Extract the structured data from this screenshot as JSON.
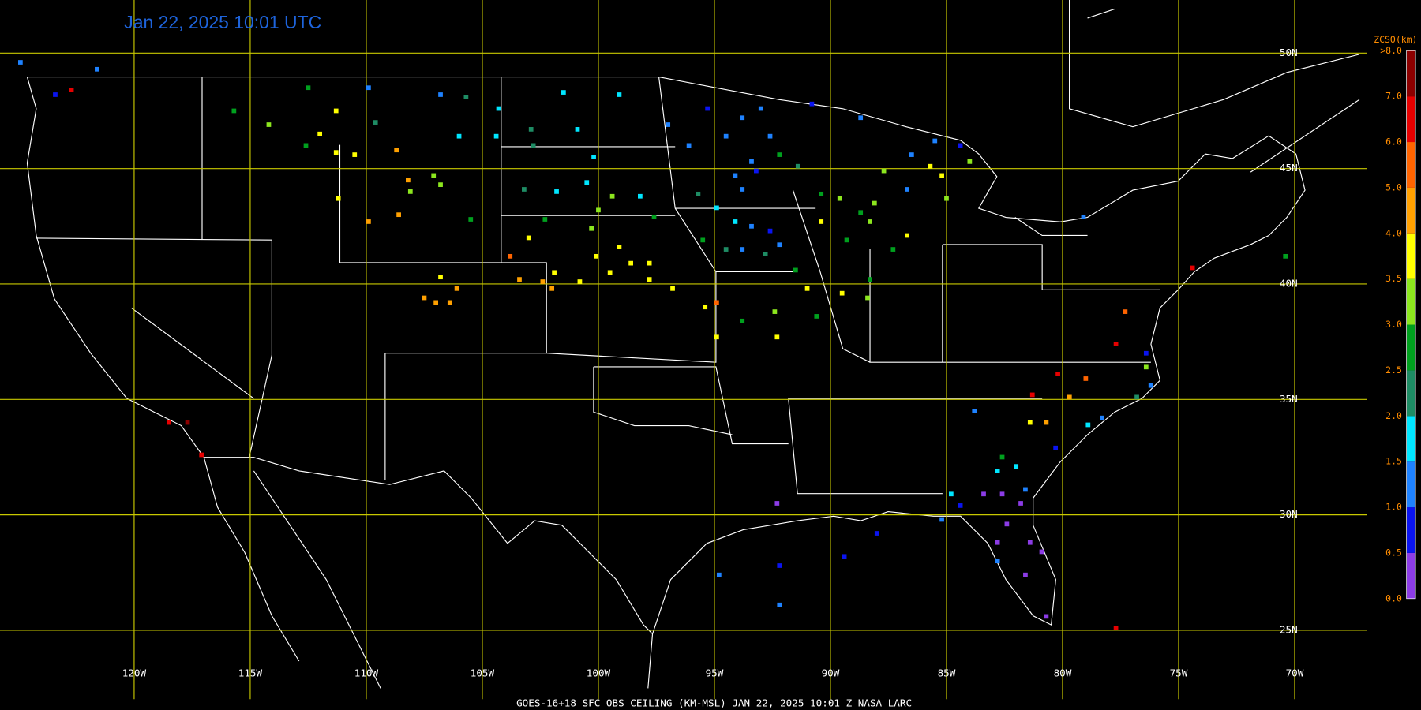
{
  "title": "Jan 22, 2025 10:01 UTC",
  "footer": "GOES-16+18  SFC OBS CEILING (KM-MSL)   JAN 22, 2025 10:01 Z   NASA LARC",
  "map": {
    "xlim": [
      -125.78,
      -66.9
    ],
    "ylim": [
      21.9,
      52.3
    ],
    "grid_color": "#c8c800",
    "xticks": [
      {
        "value": -120,
        "label": "120W"
      },
      {
        "value": -115,
        "label": "115W"
      },
      {
        "value": -110,
        "label": "110W"
      },
      {
        "value": -105,
        "label": "105W"
      },
      {
        "value": -100,
        "label": "100W"
      },
      {
        "value": -95,
        "label": "95W"
      },
      {
        "value": -90,
        "label": "90W"
      },
      {
        "value": -85,
        "label": "85W"
      },
      {
        "value": -80,
        "label": "80W"
      },
      {
        "value": -75,
        "label": "75W"
      },
      {
        "value": -70,
        "label": "70W"
      }
    ],
    "yticks": [
      {
        "value": 25,
        "label": "25N"
      },
      {
        "value": 30,
        "label": "30N"
      },
      {
        "value": 35,
        "label": "35N"
      },
      {
        "value": 40,
        "label": "40N"
      },
      {
        "value": 45,
        "label": "45N"
      },
      {
        "value": 50,
        "label": "50N"
      }
    ]
  },
  "legend": {
    "title": "ZCSO(km)",
    "levels": [
      {
        "value": 0,
        "label": "0.0"
      },
      {
        "value": 0.5,
        "label": "0.5"
      },
      {
        "value": 1,
        "label": "1.0"
      },
      {
        "value": 1.5,
        "label": "1.5"
      },
      {
        "value": 2,
        "label": "2.0"
      },
      {
        "value": 2.5,
        "label": "2.5"
      },
      {
        "value": 3,
        "label": "3.0"
      },
      {
        "value": 3.5,
        "label": "3.5"
      },
      {
        "value": 4,
        "label": "4.0"
      },
      {
        "value": 5,
        "label": "5.0"
      },
      {
        "value": 6,
        "label": "6.0"
      },
      {
        "value": 7,
        "label": "7.0"
      },
      {
        "value": 8,
        "label": ">8.0"
      }
    ],
    "colors": [
      "#8c3ce6",
      "#0a14f0",
      "#1e82ff",
      "#00e6ff",
      "#1e8c64",
      "#00a01e",
      "#8ce61e",
      "#ffff00",
      "#ffa000",
      "#ff6400",
      "#e60000",
      "#8c0000"
    ]
  },
  "stations": [
    {
      "lon": -124.9,
      "lat": 49.6,
      "ceiling": 1.2
    },
    {
      "lon": -121.6,
      "lat": 49.3,
      "ceiling": 1.2
    },
    {
      "lon": -123.4,
      "lat": 48.2,
      "ceiling": 0.8
    },
    {
      "lon": -122.7,
      "lat": 48.4,
      "ceiling": 6.8
    },
    {
      "lon": -112.5,
      "lat": 48.5,
      "ceiling": 2.8
    },
    {
      "lon": -109.9,
      "lat": 48.5,
      "ceiling": 1.2
    },
    {
      "lon": -111.3,
      "lat": 47.5,
      "ceiling": 3.8
    },
    {
      "lon": -112.0,
      "lat": 46.5,
      "ceiling": 3.8
    },
    {
      "lon": -114.2,
      "lat": 46.9,
      "ceiling": 3.2
    },
    {
      "lon": -115.7,
      "lat": 47.5,
      "ceiling": 2.8
    },
    {
      "lon": -112.6,
      "lat": 46.0,
      "ceiling": 2.8
    },
    {
      "lon": -111.3,
      "lat": 45.7,
      "ceiling": 3.8
    },
    {
      "lon": -110.5,
      "lat": 45.6,
      "ceiling": 3.8
    },
    {
      "lon": -109.6,
      "lat": 47.0,
      "ceiling": 2.2
    },
    {
      "lon": -108.7,
      "lat": 45.8,
      "ceiling": 4.5
    },
    {
      "lon": -106.8,
      "lat": 48.2,
      "ceiling": 1.2
    },
    {
      "lon": -105.7,
      "lat": 48.1,
      "ceiling": 2.2
    },
    {
      "lon": -104.3,
      "lat": 47.6,
      "ceiling": 1.8
    },
    {
      "lon": -104.4,
      "lat": 46.4,
      "ceiling": 1.8
    },
    {
      "lon": -106.0,
      "lat": 46.4,
      "ceiling": 1.8
    },
    {
      "lon": -101.5,
      "lat": 48.3,
      "ceiling": 1.8
    },
    {
      "lon": -100.9,
      "lat": 46.7,
      "ceiling": 1.8
    },
    {
      "lon": -99.1,
      "lat": 48.2,
      "ceiling": 1.8
    },
    {
      "lon": -102.9,
      "lat": 46.7,
      "ceiling": 2.2
    },
    {
      "lon": -102.8,
      "lat": 46.0,
      "ceiling": 2.2
    },
    {
      "lon": -100.2,
      "lat": 45.5,
      "ceiling": 1.8
    },
    {
      "lon": -108.2,
      "lat": 44.5,
      "ceiling": 4.5
    },
    {
      "lon": -108.1,
      "lat": 44.0,
      "ceiling": 3.2
    },
    {
      "lon": -107.1,
      "lat": 44.7,
      "ceiling": 3.2
    },
    {
      "lon": -106.8,
      "lat": 44.3,
      "ceiling": 3.2
    },
    {
      "lon": -109.9,
      "lat": 42.7,
      "ceiling": 4.5
    },
    {
      "lon": -108.6,
      "lat": 43.0,
      "ceiling": 4.5
    },
    {
      "lon": -111.2,
      "lat": 43.7,
      "ceiling": 3.8
    },
    {
      "lon": -105.5,
      "lat": 42.8,
      "ceiling": 2.8
    },
    {
      "lon": -103.2,
      "lat": 44.1,
      "ceiling": 2.2
    },
    {
      "lon": -101.8,
      "lat": 44.0,
      "ceiling": 1.8
    },
    {
      "lon": -100.5,
      "lat": 44.4,
      "ceiling": 1.8
    },
    {
      "lon": -99.4,
      "lat": 43.8,
      "ceiling": 3.2
    },
    {
      "lon": -98.2,
      "lat": 43.8,
      "ceiling": 1.8
    },
    {
      "lon": -100.0,
      "lat": 43.2,
      "ceiling": 3.2
    },
    {
      "lon": -102.3,
      "lat": 42.8,
      "ceiling": 2.8
    },
    {
      "lon": -103.0,
      "lat": 42.0,
      "ceiling": 3.8
    },
    {
      "lon": -100.3,
      "lat": 42.4,
      "ceiling": 3.2
    },
    {
      "lon": -99.1,
      "lat": 41.6,
      "ceiling": 3.8
    },
    {
      "lon": -103.8,
      "lat": 41.2,
      "ceiling": 5.5
    },
    {
      "lon": -103.4,
      "lat": 40.2,
      "ceiling": 4.5
    },
    {
      "lon": -102.4,
      "lat": 40.1,
      "ceiling": 4.5
    },
    {
      "lon": -102.0,
      "lat": 39.8,
      "ceiling": 4.5
    },
    {
      "lon": -101.9,
      "lat": 40.5,
      "ceiling": 3.8
    },
    {
      "lon": -100.8,
      "lat": 40.1,
      "ceiling": 3.8
    },
    {
      "lon": -100.1,
      "lat": 41.2,
      "ceiling": 3.8
    },
    {
      "lon": -99.5,
      "lat": 40.5,
      "ceiling": 3.8
    },
    {
      "lon": -98.6,
      "lat": 40.9,
      "ceiling": 3.8
    },
    {
      "lon": -97.8,
      "lat": 40.9,
      "ceiling": 3.8
    },
    {
      "lon": -97.8,
      "lat": 40.2,
      "ceiling": 3.8
    },
    {
      "lon": -96.8,
      "lat": 39.8,
      "ceiling": 3.8
    },
    {
      "lon": -97.6,
      "lat": 42.9,
      "ceiling": 2.8
    },
    {
      "lon": -106.8,
      "lat": 40.3,
      "ceiling": 3.8
    },
    {
      "lon": -107.5,
      "lat": 39.4,
      "ceiling": 4.5
    },
    {
      "lon": -107.0,
      "lat": 39.2,
      "ceiling": 4.5
    },
    {
      "lon": -106.4,
      "lat": 39.2,
      "ceiling": 4.5
    },
    {
      "lon": -106.1,
      "lat": 39.8,
      "ceiling": 4.5
    },
    {
      "lon": -97.0,
      "lat": 46.9,
      "ceiling": 1.2
    },
    {
      "lon": -96.1,
      "lat": 46.0,
      "ceiling": 1.2
    },
    {
      "lon": -95.3,
      "lat": 47.6,
      "ceiling": 0.8
    },
    {
      "lon": -94.5,
      "lat": 46.4,
      "ceiling": 1.2
    },
    {
      "lon": -93.8,
      "lat": 47.2,
      "ceiling": 1.2
    },
    {
      "lon": -93.0,
      "lat": 47.6,
      "ceiling": 1.2
    },
    {
      "lon": -93.4,
      "lat": 45.3,
      "ceiling": 1.2
    },
    {
      "lon": -94.1,
      "lat": 44.7,
      "ceiling": 1.2
    },
    {
      "lon": -93.2,
      "lat": 44.9,
      "ceiling": 0.8
    },
    {
      "lon": -93.8,
      "lat": 44.1,
      "ceiling": 1.2
    },
    {
      "lon": -92.6,
      "lat": 46.4,
      "ceiling": 1.2
    },
    {
      "lon": -92.2,
      "lat": 45.6,
      "ceiling": 2.8
    },
    {
      "lon": -91.4,
      "lat": 45.1,
      "ceiling": 2.2
    },
    {
      "lon": -95.7,
      "lat": 43.9,
      "ceiling": 2.2
    },
    {
      "lon": -94.9,
      "lat": 43.3,
      "ceiling": 1.8
    },
    {
      "lon": -94.1,
      "lat": 42.7,
      "ceiling": 1.8
    },
    {
      "lon": -93.4,
      "lat": 42.5,
      "ceiling": 1.2
    },
    {
      "lon": -92.6,
      "lat": 42.3,
      "ceiling": 0.8
    },
    {
      "lon": -92.2,
      "lat": 41.7,
      "ceiling": 1.2
    },
    {
      "lon": -95.5,
      "lat": 41.9,
      "ceiling": 2.8
    },
    {
      "lon": -94.5,
      "lat": 41.5,
      "ceiling": 2.2
    },
    {
      "lon": -93.8,
      "lat": 41.5,
      "ceiling": 1.2
    },
    {
      "lon": -92.8,
      "lat": 41.3,
      "ceiling": 2.2
    },
    {
      "lon": -91.5,
      "lat": 40.6,
      "ceiling": 2.8
    },
    {
      "lon": -90.4,
      "lat": 43.9,
      "ceiling": 2.8
    },
    {
      "lon": -89.6,
      "lat": 43.7,
      "ceiling": 3.2
    },
    {
      "lon": -88.7,
      "lat": 43.1,
      "ceiling": 2.8
    },
    {
      "lon": -88.1,
      "lat": 43.5,
      "ceiling": 3.2
    },
    {
      "lon": -88.3,
      "lat": 42.7,
      "ceiling": 3.2
    },
    {
      "lon": -89.3,
      "lat": 41.9,
      "ceiling": 2.8
    },
    {
      "lon": -90.4,
      "lat": 42.7,
      "ceiling": 3.8
    },
    {
      "lon": -91.0,
      "lat": 39.8,
      "ceiling": 3.8
    },
    {
      "lon": -89.5,
      "lat": 39.6,
      "ceiling": 3.8
    },
    {
      "lon": -90.6,
      "lat": 38.6,
      "ceiling": 2.8
    },
    {
      "lon": -88.3,
      "lat": 40.2,
      "ceiling": 2.8
    },
    {
      "lon": -88.4,
      "lat": 39.4,
      "ceiling": 3.2
    },
    {
      "lon": -93.8,
      "lat": 38.4,
      "ceiling": 2.8
    },
    {
      "lon": -92.4,
      "lat": 38.8,
      "ceiling": 3.2
    },
    {
      "lon": -92.3,
      "lat": 37.7,
      "ceiling": 3.8
    },
    {
      "lon": -95.4,
      "lat": 39.0,
      "ceiling": 3.8
    },
    {
      "lon": -94.9,
      "lat": 37.7,
      "ceiling": 3.8
    },
    {
      "lon": -94.9,
      "lat": 39.2,
      "ceiling": 5.5
    },
    {
      "lon": -87.7,
      "lat": 44.9,
      "ceiling": 3.2
    },
    {
      "lon": -86.7,
      "lat": 44.1,
      "ceiling": 1.2
    },
    {
      "lon": -86.5,
      "lat": 45.6,
      "ceiling": 1.2
    },
    {
      "lon": -85.7,
      "lat": 45.1,
      "ceiling": 3.8
    },
    {
      "lon": -85.2,
      "lat": 44.7,
      "ceiling": 3.8
    },
    {
      "lon": -85.0,
      "lat": 43.7,
      "ceiling": 3.2
    },
    {
      "lon": -84.4,
      "lat": 46.0,
      "ceiling": 0.8
    },
    {
      "lon": -84.0,
      "lat": 45.3,
      "ceiling": 3.2
    },
    {
      "lon": -85.5,
      "lat": 46.2,
      "ceiling": 1.2
    },
    {
      "lon": -88.7,
      "lat": 47.2,
      "ceiling": 1.2
    },
    {
      "lon": -90.8,
      "lat": 47.8,
      "ceiling": 0.8
    },
    {
      "lon": -86.7,
      "lat": 42.1,
      "ceiling": 3.8
    },
    {
      "lon": -87.3,
      "lat": 41.5,
      "ceiling": 2.8
    },
    {
      "lon": -79.1,
      "lat": 42.9,
      "ceiling": 1.2
    },
    {
      "lon": -74.4,
      "lat": 40.7,
      "ceiling": 6.8
    },
    {
      "lon": -70.4,
      "lat": 41.2,
      "ceiling": 2.8
    },
    {
      "lon": -77.3,
      "lat": 38.8,
      "ceiling": 5.5
    },
    {
      "lon": -77.7,
      "lat": 37.4,
      "ceiling": 6.8
    },
    {
      "lon": -76.4,
      "lat": 37.0,
      "ceiling": 0.8
    },
    {
      "lon": -76.4,
      "lat": 36.4,
      "ceiling": 3.2
    },
    {
      "lon": -76.2,
      "lat": 35.6,
      "ceiling": 1.2
    },
    {
      "lon": -76.8,
      "lat": 35.1,
      "ceiling": 2.2
    },
    {
      "lon": -79.0,
      "lat": 35.9,
      "ceiling": 5.5
    },
    {
      "lon": -80.2,
      "lat": 36.1,
      "ceiling": 6.8
    },
    {
      "lon": -81.3,
      "lat": 35.2,
      "ceiling": 6.8
    },
    {
      "lon": -79.7,
      "lat": 35.1,
      "ceiling": 4.5
    },
    {
      "lon": -78.3,
      "lat": 34.2,
      "ceiling": 1.2
    },
    {
      "lon": -78.9,
      "lat": 33.9,
      "ceiling": 1.8
    },
    {
      "lon": -81.4,
      "lat": 34.0,
      "ceiling": 3.8
    },
    {
      "lon": -80.7,
      "lat": 34.0,
      "ceiling": 4.5
    },
    {
      "lon": -80.3,
      "lat": 32.9,
      "ceiling": 0.8
    },
    {
      "lon": -83.8,
      "lat": 34.5,
      "ceiling": 1.2
    },
    {
      "lon": -82.6,
      "lat": 32.5,
      "ceiling": 2.8
    },
    {
      "lon": -82.8,
      "lat": 31.9,
      "ceiling": 1.8
    },
    {
      "lon": -82.0,
      "lat": 32.1,
      "ceiling": 1.8
    },
    {
      "lon": -81.6,
      "lat": 31.1,
      "ceiling": 1.2
    },
    {
      "lon": -84.8,
      "lat": 30.9,
      "ceiling": 1.8
    },
    {
      "lon": -83.4,
      "lat": 30.9,
      "ceiling": 0.3
    },
    {
      "lon": -82.6,
      "lat": 30.9,
      "ceiling": 0.3
    },
    {
      "lon": -81.8,
      "lat": 30.5,
      "ceiling": 0.3
    },
    {
      "lon": -84.4,
      "lat": 30.4,
      "ceiling": 0.8
    },
    {
      "lon": -82.4,
      "lat": 29.6,
      "ceiling": 0.3
    },
    {
      "lon": -82.8,
      "lat": 28.8,
      "ceiling": 0.3
    },
    {
      "lon": -81.4,
      "lat": 28.8,
      "ceiling": 0.3
    },
    {
      "lon": -80.9,
      "lat": 28.4,
      "ceiling": 0.3
    },
    {
      "lon": -82.8,
      "lat": 28.0,
      "ceiling": 1.2
    },
    {
      "lon": -81.6,
      "lat": 27.4,
      "ceiling": 0.3
    },
    {
      "lon": -80.7,
      "lat": 25.6,
      "ceiling": 0.3
    },
    {
      "lon": -85.2,
      "lat": 29.8,
      "ceiling": 1.2
    },
    {
      "lon": -92.3,
      "lat": 30.5,
      "ceiling": 0.3
    },
    {
      "lon": -92.2,
      "lat": 27.8,
      "ceiling": 0.8
    },
    {
      "lon": -89.4,
      "lat": 28.2,
      "ceiling": 0.8
    },
    {
      "lon": -88.0,
      "lat": 29.2,
      "ceiling": 0.8
    },
    {
      "lon": -94.8,
      "lat": 27.4,
      "ceiling": 1.2
    },
    {
      "lon": -92.2,
      "lat": 26.1,
      "ceiling": 1.2
    },
    {
      "lon": -118.5,
      "lat": 34.0,
      "ceiling": 6.8
    },
    {
      "lon": -117.7,
      "lat": 34.0,
      "ceiling": 7.5
    },
    {
      "lon": -117.1,
      "lat": 32.6,
      "ceiling": 6.8
    },
    {
      "lon": -77.7,
      "lat": 25.1,
      "ceiling": 6.8
    }
  ]
}
